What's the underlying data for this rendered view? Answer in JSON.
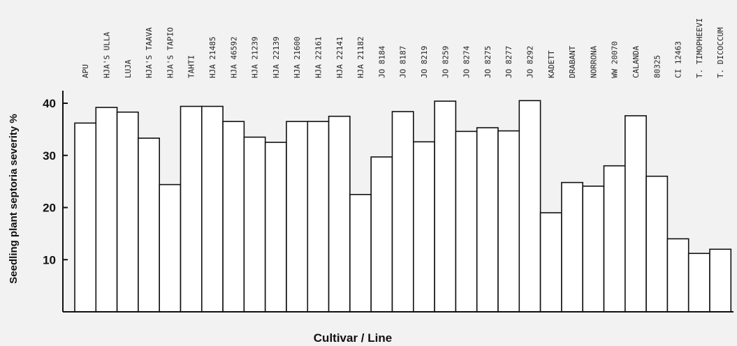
{
  "chart_data": {
    "type": "bar",
    "xlabel": "Cultivar / Line",
    "ylabel": "Seedling plant septoria severity %",
    "ylim": [
      0,
      40
    ],
    "yticks": [
      10,
      20,
      30,
      40
    ],
    "grid": false,
    "categories": [
      "APU",
      "HJA'S ULLA",
      "LUJA",
      "HJA'S TAAVA",
      "HJA'S TAPIO",
      "TAHTI",
      "HJA 21485",
      "HJA 46592",
      "HJA 21239",
      "HJA 22139",
      "HJA 21600",
      "HJA 22161",
      "HJA 22141",
      "HJA 21182",
      "JO 8184",
      "JO 8187",
      "JO 8219",
      "JO 8259",
      "JO 8274",
      "JO 8275",
      "JO 8277",
      "JO 8292",
      "KADETT",
      "DRABANT",
      "NORRONA",
      "WW 20070",
      "CALANDA",
      "80325",
      "CI 12463",
      "T. TIMOPHEEVI",
      "T. DICOCCUM"
    ],
    "values": [
      36.2,
      39.2,
      38.3,
      33.3,
      24.4,
      39.4,
      39.4,
      36.5,
      33.5,
      32.5,
      36.5,
      36.5,
      37.5,
      22.5,
      29.7,
      38.4,
      32.6,
      40.4,
      34.6,
      35.3,
      34.7,
      40.5,
      19.0,
      24.8,
      24.1,
      28.0,
      37.6,
      26.0,
      14.0,
      11.2,
      12.0
    ]
  }
}
